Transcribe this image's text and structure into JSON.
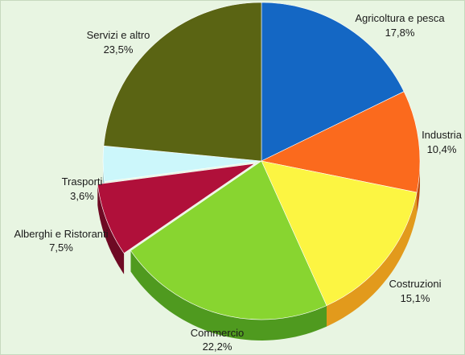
{
  "chart_data": {
    "type": "pie",
    "title": "",
    "start_angle_deg": 90,
    "direction": "clockwise",
    "slices": [
      {
        "label": "Agricoltura e pesca",
        "value": 17.8,
        "value_text": "17,8%",
        "color": "#1467c4",
        "side_color": "#0c4a94"
      },
      {
        "label": "Industria",
        "value": 10.4,
        "value_text": "10,4%",
        "color": "#fb6a1d",
        "side_color": "#c04a0d"
      },
      {
        "label": "Costruzioni",
        "value": 15.1,
        "value_text": "15,1%",
        "color": "#fcf542",
        "side_color": "#e29a1c"
      },
      {
        "label": "Commercio",
        "value": 22.2,
        "value_text": "22,2%",
        "color": "#88d530",
        "side_color": "#4f9a1f"
      },
      {
        "label": "Alberghi e Ristoranti",
        "value": 7.5,
        "value_text": "7,5%",
        "color": "#b0103a",
        "side_color": "#6e0a24"
      },
      {
        "label": "Trasporti",
        "value": 3.6,
        "value_text": "3,6%",
        "color": "#ccf7fb",
        "side_color": "#9cc9cc"
      },
      {
        "label": "Servizi e altro",
        "value": 23.5,
        "value_text": "23,5%",
        "color": "#5a6413",
        "side_color": "#3a410b"
      }
    ]
  }
}
